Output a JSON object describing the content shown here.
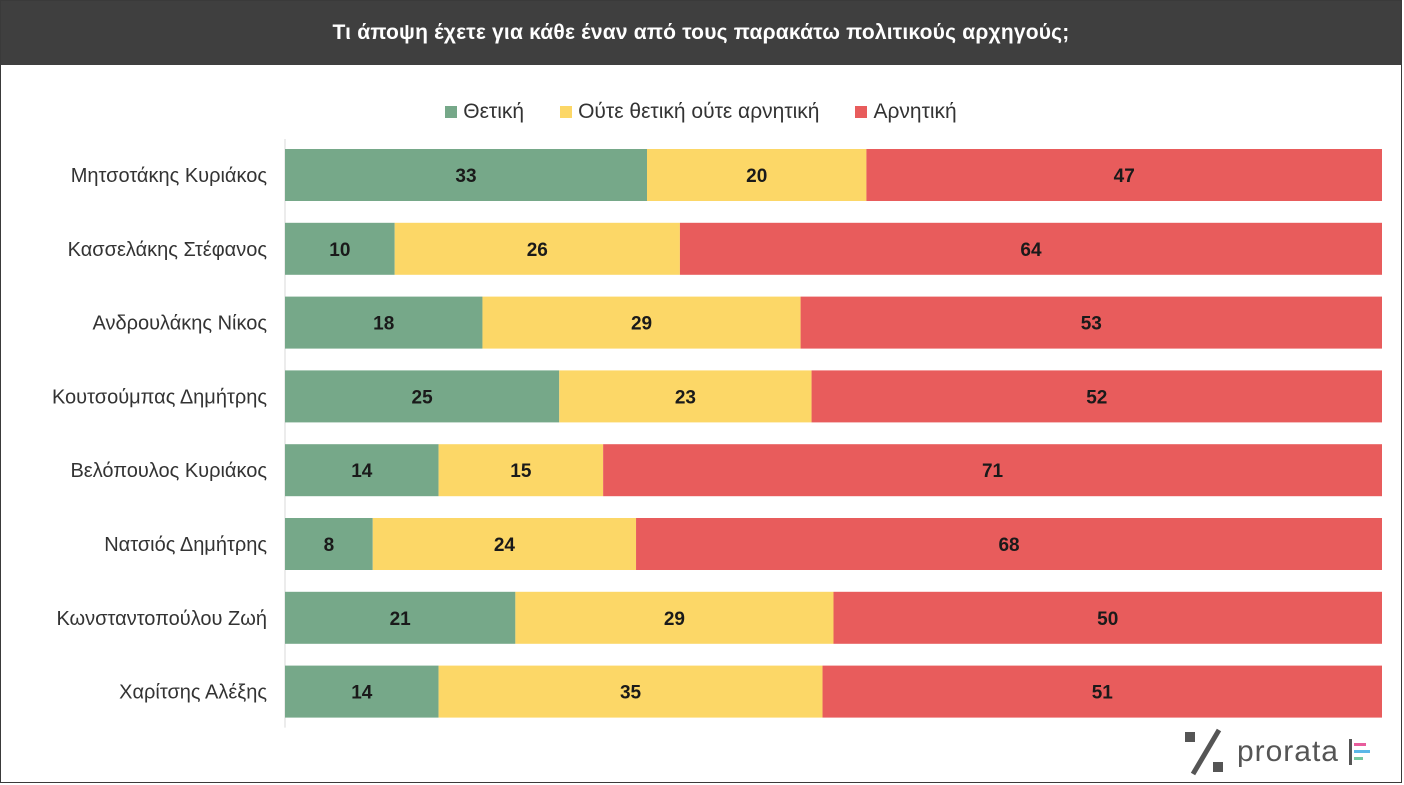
{
  "title": "Τι άποψη έχετε για κάθε έναν από τους παρακάτω πολιτικούς αρχηγούς;",
  "logo": {
    "text": "prorata",
    "icon": "percent-icon"
  },
  "colors": {
    "positive": "#76a889",
    "neutral": "#fcd767",
    "negative": "#e85c5c",
    "title_bg": "#3f3f3f"
  },
  "chart_data": {
    "type": "bar",
    "orientation": "horizontal",
    "stacked": true,
    "categories": [
      "Μητσοτάκης Κυριάκος",
      "Κασσελάκης Στέφανος",
      "Ανδρουλάκης Νίκος",
      "Κουτσούμπας Δημήτρης",
      "Βελόπουλος Κυριάκος",
      "Νατσιός Δημήτρης",
      "Κωνσταντοπούλου Ζωή",
      "Χαρίτσης Αλέξης"
    ],
    "series": [
      {
        "name": "Θετική",
        "color": "#76a889",
        "values": [
          33,
          10,
          18,
          25,
          14,
          8,
          21,
          14
        ]
      },
      {
        "name": "Ούτε θετική ούτε αρνητική",
        "color": "#fcd767",
        "values": [
          20,
          26,
          29,
          23,
          15,
          24,
          29,
          35
        ]
      },
      {
        "name": "Αρνητική",
        "color": "#e85c5c",
        "values": [
          47,
          64,
          53,
          52,
          71,
          68,
          50,
          51
        ]
      }
    ],
    "legend": "top",
    "grid": false
  }
}
